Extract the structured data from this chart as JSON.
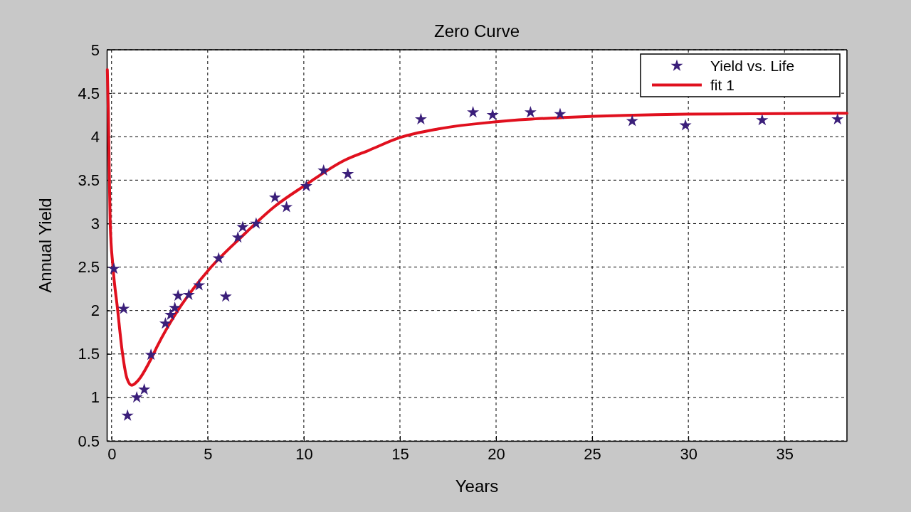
{
  "chart_data": {
    "type": "scatter",
    "title": "Zero Curve",
    "xlabel": "Years",
    "ylabel": "Annual Yield",
    "xlim": [
      -0.25,
      38.25
    ],
    "ylim": [
      0.5,
      5
    ],
    "xticks": [
      0,
      5,
      10,
      15,
      20,
      25,
      30,
      35
    ],
    "yticks": [
      0.5,
      1,
      1.5,
      2,
      2.5,
      3,
      3.5,
      4,
      4.5,
      5
    ],
    "grid": true,
    "legend": "top right",
    "series": [
      {
        "name": "Yield vs. Life",
        "marker": "star",
        "color": "#3b1f7a",
        "x": [
          0.12,
          0.63,
          0.83,
          1.31,
          1.7,
          2.05,
          2.8,
          3.07,
          3.29,
          3.46,
          4.02,
          4.55,
          5.57,
          5.94,
          6.57,
          6.82,
          7.52,
          8.5,
          9.1,
          10.13,
          11.03,
          12.29,
          16.09,
          18.8,
          19.82,
          21.79,
          23.33,
          27.08,
          29.85,
          33.84,
          37.76
        ],
        "values": [
          2.48,
          2.02,
          0.79,
          1.0,
          1.09,
          1.49,
          1.85,
          1.95,
          2.03,
          2.17,
          2.18,
          2.29,
          2.6,
          2.16,
          2.84,
          2.96,
          3.0,
          3.3,
          3.19,
          3.43,
          3.61,
          3.57,
          4.2,
          4.28,
          4.25,
          4.28,
          4.26,
          4.18,
          4.13,
          4.19,
          4.2
        ]
      },
      {
        "name": "fit 1",
        "type": "line",
        "color": "#e0101e",
        "line_style": "solid",
        "x": [
          -0.22,
          -0.17,
          -0.12,
          -0.07,
          0.07,
          0.31,
          0.56,
          0.8,
          1.05,
          1.4,
          2.0,
          2.4,
          3.3,
          5.06,
          6.77,
          8.5,
          10.06,
          12.13,
          13.35,
          15,
          17,
          19.92,
          21.68,
          23.5,
          29.9,
          38.25
        ],
        "values": [
          4.77,
          4.3,
          3.6,
          3.0,
          2.51,
          2.02,
          1.52,
          1.22,
          1.14,
          1.2,
          1.42,
          1.6,
          1.95,
          2.47,
          2.85,
          3.2,
          3.44,
          3.73,
          3.84,
          3.99,
          4.09,
          4.17,
          4.2,
          4.22,
          4.26,
          4.27
        ]
      }
    ]
  }
}
